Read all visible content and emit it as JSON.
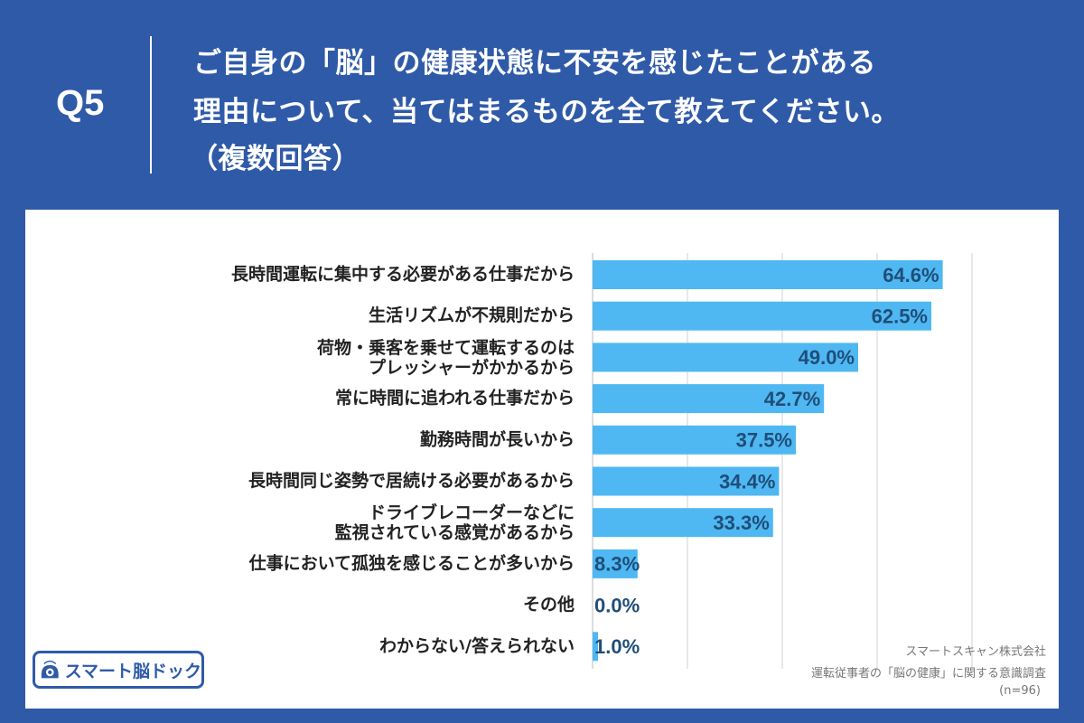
{
  "header": {
    "question_number": "Q5",
    "title_lines": [
      "ご自身の「脳」の健康状態に不安を感じたことがある",
      "理由について、当てはまるものを全て教えてください。",
      "（複数回答）"
    ]
  },
  "chart_data": {
    "type": "bar",
    "orientation": "horizontal",
    "categories": [
      [
        "長時間運転に集中する必要がある仕事だから"
      ],
      [
        "生活リズムが不規則だから"
      ],
      [
        "荷物・乗客を乗せて運転するのは",
        "プレッシャーがかかるから"
      ],
      [
        "常に時間に追われる仕事だから"
      ],
      [
        "勤務時間が長いから"
      ],
      [
        "長時間同じ姿勢で居続ける必要があるから"
      ],
      [
        "ドライブレコーダーなどに",
        "監視されている感覚があるから"
      ],
      [
        "仕事において孤独を感じることが多いから"
      ],
      [
        "その他"
      ],
      [
        "わからない/答えられない"
      ]
    ],
    "values": [
      64.6,
      62.5,
      49.0,
      42.7,
      37.5,
      34.4,
      33.3,
      8.3,
      0.0,
      1.0
    ],
    "value_labels": [
      "64.6%",
      "62.5%",
      "49.0%",
      "42.7%",
      "37.5%",
      "34.4%",
      "33.3%",
      "8.3%",
      "0.0%",
      "1.0%"
    ],
    "xlim": [
      0,
      70
    ],
    "grid_step": 17.5,
    "grid": true,
    "bar_color": "#4fb8f2"
  },
  "logo": {
    "text": "スマート脳ドック",
    "icon": "brain-dock-icon"
  },
  "source": {
    "company": "スマートスキャン株式会社",
    "survey": "運転従事者の「脳の健康」に関する意識調査",
    "sample": "(n=96)"
  },
  "colors": {
    "background": "#2f5aa8",
    "panel": "#ffffff",
    "value_text": "#1f4e78"
  }
}
